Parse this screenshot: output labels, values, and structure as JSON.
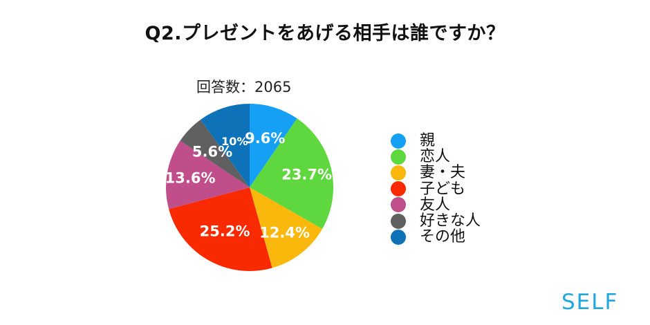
{
  "title": "Q2.プレゼントをあげる相手は誰ですか？",
  "response_count": "回答数：2065",
  "logo": "SELF",
  "legend": [
    {
      "label": "親",
      "color": "#16A0F5"
    },
    {
      "label": "恋人",
      "color": "#5FD83F"
    },
    {
      "label": "妻・夫",
      "color": "#F9B80B"
    },
    {
      "label": "子ども",
      "color": "#FA2A00"
    },
    {
      "label": "友人",
      "color": "#C04E8B"
    },
    {
      "label": "好きな人",
      "color": "#606060"
    },
    {
      "label": "その他",
      "color": "#0E72B8"
    }
  ],
  "chart_data": {
    "type": "pie",
    "title": "Q2.プレゼントをあげる相手は誰ですか？",
    "subtitle": "回答数：2065",
    "categories": [
      "親",
      "恋人",
      "妻・夫",
      "子ども",
      "友人",
      "好きな人",
      "その他"
    ],
    "values": [
      9.6,
      23.7,
      12.4,
      25.2,
      13.6,
      5.6,
      10
    ],
    "labels": [
      "9.6%",
      "23.7%",
      "12.4%",
      "25.2%",
      "13.6%",
      "5.6%",
      "10%"
    ],
    "colors": [
      "#16A0F5",
      "#5FD83F",
      "#F9B80B",
      "#FA2A00",
      "#C04E8B",
      "#606060",
      "#0E72B8"
    ],
    "start_angle": "12 o'clock",
    "direction": "clockwise",
    "legend_position": "right",
    "total_responses": 2065
  }
}
